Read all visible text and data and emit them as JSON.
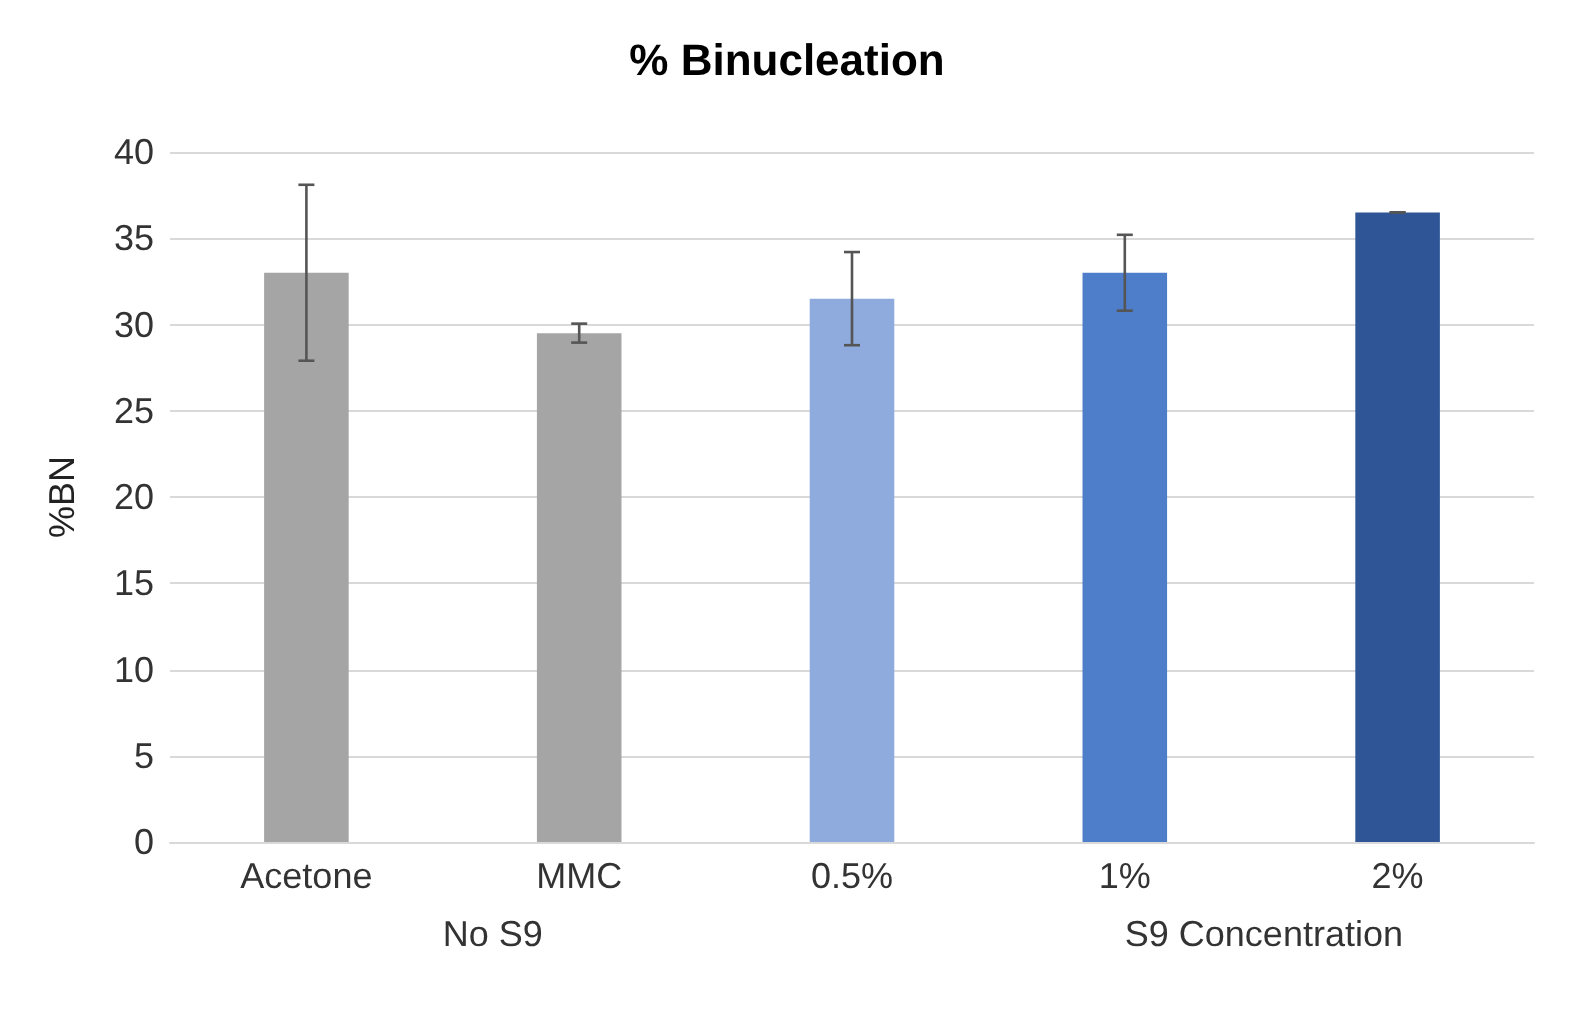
{
  "chart_data": {
    "type": "bar",
    "title": "% Binucleation",
    "ylabel": "%BN",
    "categories": [
      "Acetone",
      "MMC",
      "0.5%",
      "1%",
      "2%"
    ],
    "values": [
      33.0,
      29.5,
      31.5,
      33.0,
      36.5
    ],
    "colors": [
      "#a5a5a5",
      "#a5a5a5",
      "#8faadc",
      "#4e7dca",
      "#2f5597"
    ],
    "errors": [
      5.1,
      0.55,
      2.7,
      2.2,
      0
    ],
    "ylim": [
      0,
      40
    ],
    "yticks": [
      0,
      5,
      10,
      15,
      20,
      25,
      30,
      35,
      40
    ],
    "grid": "y",
    "annotations": [
      "No S9",
      "S9 Concentration"
    ]
  }
}
